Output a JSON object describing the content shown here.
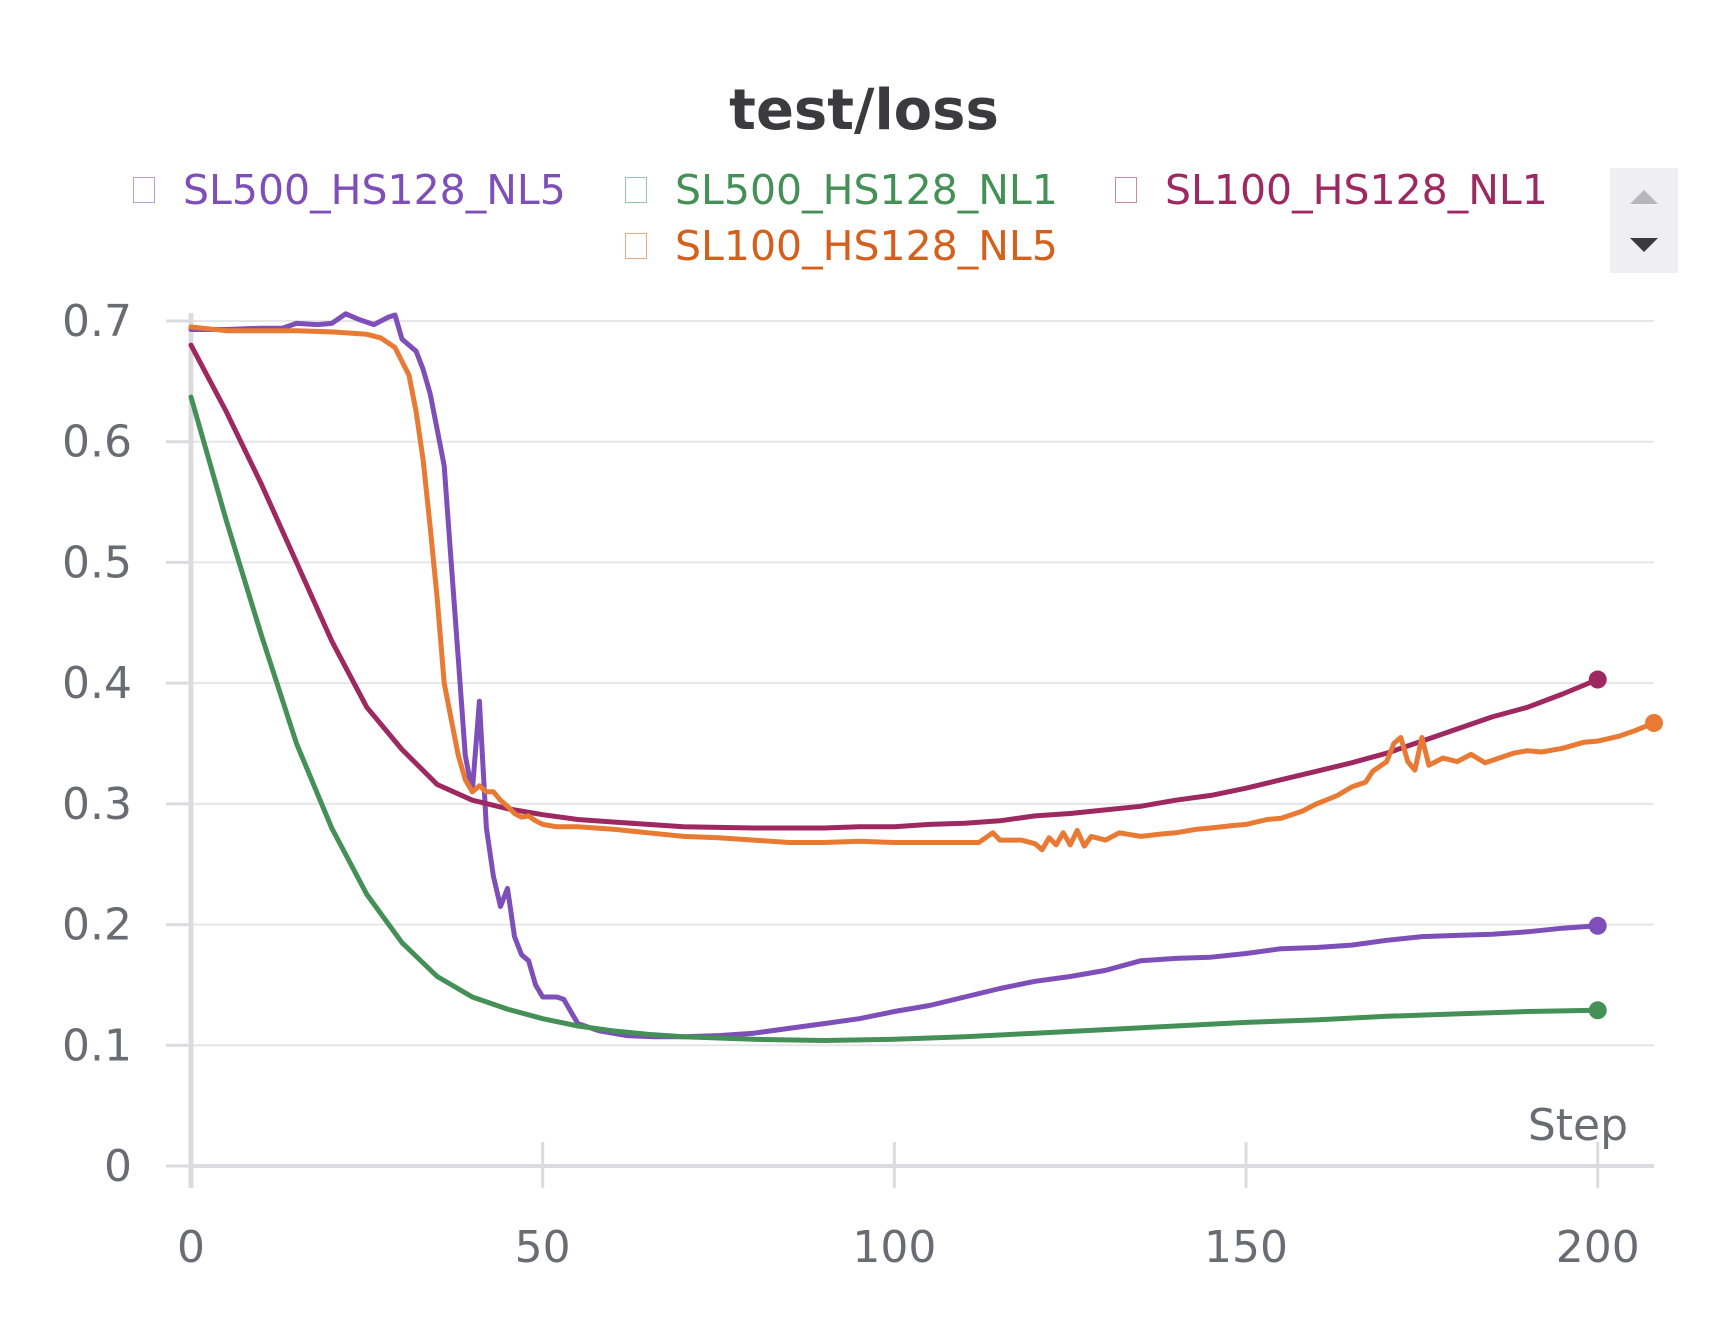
{
  "chart_data": {
    "type": "line",
    "title": "test/loss",
    "xlabel": "Step",
    "ylabel": "",
    "xlim": [
      0,
      208
    ],
    "ylim": [
      0,
      0.7
    ],
    "xticks": [
      0,
      50,
      100,
      150,
      200
    ],
    "yticks": [
      0,
      0.1,
      0.2,
      0.3,
      0.4,
      0.5,
      0.6,
      0.7
    ],
    "grid": true,
    "legend_position": "top",
    "series": [
      {
        "name": "SL500_HS128_NL5",
        "color": "#7e4fb8",
        "end_marker": true,
        "points": [
          [
            0,
            0.693
          ],
          [
            5,
            0.693
          ],
          [
            10,
            0.694
          ],
          [
            13,
            0.694
          ],
          [
            15,
            0.698
          ],
          [
            18,
            0.697
          ],
          [
            20,
            0.698
          ],
          [
            22,
            0.706
          ],
          [
            24,
            0.701
          ],
          [
            26,
            0.697
          ],
          [
            28,
            0.703
          ],
          [
            29,
            0.705
          ],
          [
            30,
            0.685
          ],
          [
            32,
            0.675
          ],
          [
            33,
            0.66
          ],
          [
            34,
            0.64
          ],
          [
            35,
            0.61
          ],
          [
            36,
            0.58
          ],
          [
            37,
            0.5
          ],
          [
            38,
            0.42
          ],
          [
            39,
            0.34
          ],
          [
            40,
            0.31
          ],
          [
            41,
            0.385
          ],
          [
            42,
            0.28
          ],
          [
            43,
            0.24
          ],
          [
            44,
            0.215
          ],
          [
            45,
            0.23
          ],
          [
            46,
            0.19
          ],
          [
            47,
            0.175
          ],
          [
            48,
            0.17
          ],
          [
            49,
            0.15
          ],
          [
            50,
            0.14
          ],
          [
            51,
            0.14
          ],
          [
            52,
            0.14
          ],
          [
            53,
            0.138
          ],
          [
            54,
            0.128
          ],
          [
            55,
            0.118
          ],
          [
            58,
            0.112
          ],
          [
            62,
            0.108
          ],
          [
            66,
            0.107
          ],
          [
            70,
            0.107
          ],
          [
            75,
            0.108
          ],
          [
            80,
            0.11
          ],
          [
            85,
            0.114
          ],
          [
            90,
            0.118
          ],
          [
            95,
            0.122
          ],
          [
            100,
            0.128
          ],
          [
            105,
            0.133
          ],
          [
            110,
            0.14
          ],
          [
            115,
            0.147
          ],
          [
            120,
            0.153
          ],
          [
            125,
            0.157
          ],
          [
            130,
            0.162
          ],
          [
            135,
            0.17
          ],
          [
            140,
            0.172
          ],
          [
            145,
            0.173
          ],
          [
            150,
            0.176
          ],
          [
            155,
            0.18
          ],
          [
            160,
            0.181
          ],
          [
            165,
            0.183
          ],
          [
            170,
            0.187
          ],
          [
            175,
            0.19
          ],
          [
            180,
            0.191
          ],
          [
            185,
            0.192
          ],
          [
            190,
            0.194
          ],
          [
            195,
            0.197
          ],
          [
            200,
            0.199
          ]
        ]
      },
      {
        "name": "SL500_HS128_NL1",
        "color": "#449056",
        "end_marker": true,
        "points": [
          [
            0,
            0.637
          ],
          [
            5,
            0.535
          ],
          [
            10,
            0.44
          ],
          [
            15,
            0.35
          ],
          [
            20,
            0.28
          ],
          [
            25,
            0.225
          ],
          [
            30,
            0.185
          ],
          [
            35,
            0.157
          ],
          [
            40,
            0.14
          ],
          [
            45,
            0.13
          ],
          [
            50,
            0.122
          ],
          [
            55,
            0.116
          ],
          [
            60,
            0.112
          ],
          [
            65,
            0.109
          ],
          [
            70,
            0.107
          ],
          [
            75,
            0.106
          ],
          [
            80,
            0.105
          ],
          [
            90,
            0.104
          ],
          [
            100,
            0.105
          ],
          [
            110,
            0.107
          ],
          [
            120,
            0.11
          ],
          [
            130,
            0.113
          ],
          [
            140,
            0.116
          ],
          [
            150,
            0.119
          ],
          [
            160,
            0.121
          ],
          [
            170,
            0.124
          ],
          [
            180,
            0.126
          ],
          [
            190,
            0.128
          ],
          [
            200,
            0.129
          ]
        ]
      },
      {
        "name": "SL100_HS128_NL1",
        "color": "#9e2860",
        "end_marker": true,
        "points": [
          [
            0,
            0.68
          ],
          [
            5,
            0.625
          ],
          [
            10,
            0.565
          ],
          [
            15,
            0.5
          ],
          [
            20,
            0.435
          ],
          [
            25,
            0.38
          ],
          [
            30,
            0.345
          ],
          [
            35,
            0.316
          ],
          [
            40,
            0.303
          ],
          [
            45,
            0.296
          ],
          [
            50,
            0.291
          ],
          [
            55,
            0.287
          ],
          [
            60,
            0.285
          ],
          [
            65,
            0.283
          ],
          [
            70,
            0.281
          ],
          [
            80,
            0.28
          ],
          [
            90,
            0.28
          ],
          [
            95,
            0.281
          ],
          [
            100,
            0.281
          ],
          [
            105,
            0.283
          ],
          [
            110,
            0.284
          ],
          [
            115,
            0.286
          ],
          [
            120,
            0.29
          ],
          [
            125,
            0.292
          ],
          [
            130,
            0.295
          ],
          [
            135,
            0.298
          ],
          [
            140,
            0.303
          ],
          [
            145,
            0.307
          ],
          [
            150,
            0.313
          ],
          [
            155,
            0.32
          ],
          [
            160,
            0.327
          ],
          [
            165,
            0.334
          ],
          [
            170,
            0.342
          ],
          [
            175,
            0.352
          ],
          [
            180,
            0.362
          ],
          [
            185,
            0.372
          ],
          [
            190,
            0.38
          ],
          [
            195,
            0.391
          ],
          [
            200,
            0.403
          ]
        ]
      },
      {
        "name": "SL100_HS128_NL5",
        "color": "#e87a34",
        "end_marker": true,
        "points": [
          [
            0,
            0.695
          ],
          [
            5,
            0.692
          ],
          [
            10,
            0.692
          ],
          [
            15,
            0.692
          ],
          [
            20,
            0.691
          ],
          [
            25,
            0.689
          ],
          [
            27,
            0.686
          ],
          [
            29,
            0.678
          ],
          [
            31,
            0.655
          ],
          [
            32,
            0.625
          ],
          [
            33,
            0.585
          ],
          [
            34,
            0.53
          ],
          [
            35,
            0.47
          ],
          [
            36,
            0.4
          ],
          [
            37,
            0.37
          ],
          [
            38,
            0.34
          ],
          [
            39,
            0.32
          ],
          [
            40,
            0.31
          ],
          [
            41,
            0.315
          ],
          [
            42,
            0.31
          ],
          [
            43,
            0.31
          ],
          [
            44,
            0.303
          ],
          [
            45,
            0.298
          ],
          [
            46,
            0.292
          ],
          [
            47,
            0.289
          ],
          [
            48,
            0.29
          ],
          [
            49,
            0.286
          ],
          [
            50,
            0.283
          ],
          [
            52,
            0.281
          ],
          [
            55,
            0.281
          ],
          [
            60,
            0.279
          ],
          [
            65,
            0.276
          ],
          [
            70,
            0.273
          ],
          [
            75,
            0.272
          ],
          [
            80,
            0.27
          ],
          [
            85,
            0.268
          ],
          [
            90,
            0.268
          ],
          [
            95,
            0.269
          ],
          [
            100,
            0.268
          ],
          [
            105,
            0.268
          ],
          [
            110,
            0.268
          ],
          [
            112,
            0.268
          ],
          [
            114,
            0.276
          ],
          [
            115,
            0.27
          ],
          [
            118,
            0.27
          ],
          [
            120,
            0.267
          ],
          [
            121,
            0.262
          ],
          [
            122,
            0.272
          ],
          [
            123,
            0.266
          ],
          [
            124,
            0.276
          ],
          [
            125,
            0.266
          ],
          [
            126,
            0.278
          ],
          [
            127,
            0.265
          ],
          [
            128,
            0.273
          ],
          [
            130,
            0.27
          ],
          [
            132,
            0.276
          ],
          [
            135,
            0.273
          ],
          [
            138,
            0.275
          ],
          [
            140,
            0.276
          ],
          [
            143,
            0.279
          ],
          [
            145,
            0.28
          ],
          [
            148,
            0.282
          ],
          [
            150,
            0.283
          ],
          [
            153,
            0.287
          ],
          [
            155,
            0.288
          ],
          [
            158,
            0.294
          ],
          [
            160,
            0.3
          ],
          [
            163,
            0.307
          ],
          [
            165,
            0.314
          ],
          [
            167,
            0.318
          ],
          [
            168,
            0.327
          ],
          [
            170,
            0.335
          ],
          [
            171,
            0.35
          ],
          [
            172,
            0.355
          ],
          [
            173,
            0.335
          ],
          [
            174,
            0.328
          ],
          [
            175,
            0.355
          ],
          [
            176,
            0.332
          ],
          [
            178,
            0.338
          ],
          [
            180,
            0.335
          ],
          [
            182,
            0.341
          ],
          [
            184,
            0.334
          ],
          [
            186,
            0.338
          ],
          [
            188,
            0.342
          ],
          [
            190,
            0.344
          ],
          [
            192,
            0.343
          ],
          [
            195,
            0.346
          ],
          [
            198,
            0.351
          ],
          [
            200,
            0.352
          ],
          [
            203,
            0.356
          ],
          [
            205,
            0.36
          ],
          [
            208,
            0.367
          ]
        ]
      }
    ]
  }
}
